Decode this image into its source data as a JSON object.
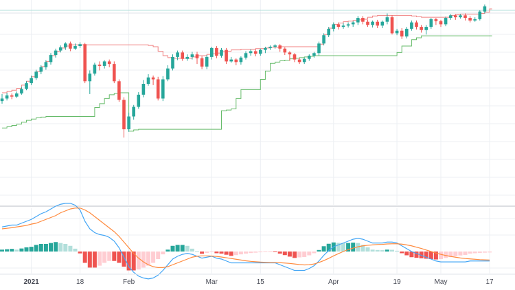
{
  "colors": {
    "up": "#26a69a",
    "down": "#ef5350",
    "upper_band": "#f08080",
    "lower_band": "#66bb6a",
    "macd": "#42a5f5",
    "signal": "#ff8a3d",
    "hist_up_strong": "#26a69a",
    "hist_up_weak": "#b2dfdb",
    "hist_down_strong": "#ef5350",
    "hist_down_weak": "#ffcdd2",
    "pane_divider": "#b8bcc4"
  },
  "chart_data": [
    {
      "type": "candlestick",
      "grid": true,
      "legend": "none",
      "ylim": [
        -30,
        290
      ],
      "x_ticks": [
        {
          "index": 6,
          "label": "2021",
          "bold": true
        },
        {
          "index": 16,
          "label": "18",
          "bold": false
        },
        {
          "index": 26,
          "label": "Feb",
          "bold": false
        },
        {
          "index": 43,
          "label": "Mar",
          "bold": false
        },
        {
          "index": 53,
          "label": "15",
          "bold": false
        },
        {
          "index": 68,
          "label": "Apr",
          "bold": false
        },
        {
          "index": 81,
          "label": "19",
          "bold": false
        },
        {
          "index": 90,
          "label": "May",
          "bold": false
        },
        {
          "index": 100,
          "label": "17",
          "bold": false
        }
      ],
      "candles": [
        [
          132,
          136,
          143,
          128
        ],
        [
          136,
          141,
          145,
          133
        ],
        [
          141,
          139,
          144,
          135
        ],
        [
          139,
          144,
          147,
          137
        ],
        [
          144,
          151,
          154,
          142
        ],
        [
          151,
          160,
          163,
          149
        ],
        [
          160,
          168,
          172,
          157
        ],
        [
          168,
          178,
          181,
          165
        ],
        [
          178,
          185,
          188,
          174
        ],
        [
          185,
          193,
          196,
          181
        ],
        [
          193,
          204,
          207,
          189
        ],
        [
          204,
          211,
          214,
          200
        ],
        [
          211,
          216,
          219,
          208
        ],
        [
          216,
          222,
          224,
          212
        ],
        [
          222,
          214,
          225,
          210
        ],
        [
          214,
          218,
          222,
          212
        ],
        [
          218,
          221,
          224,
          215
        ],
        [
          221,
          163,
          223,
          160
        ],
        [
          163,
          175,
          180,
          143
        ],
        [
          175,
          189,
          192,
          172
        ],
        [
          189,
          187,
          194,
          180
        ],
        [
          187,
          194,
          196,
          183
        ],
        [
          194,
          190,
          197,
          185
        ],
        [
          190,
          163,
          194,
          160
        ],
        [
          163,
          134,
          166,
          131
        ],
        [
          134,
          88,
          138,
          75
        ],
        [
          88,
          108,
          114,
          84
        ],
        [
          108,
          123,
          126,
          103
        ],
        [
          123,
          142,
          146,
          120
        ],
        [
          142,
          159,
          165,
          138
        ],
        [
          159,
          169,
          174,
          156
        ],
        [
          169,
          166,
          172,
          157
        ],
        [
          166,
          136,
          170,
          133
        ],
        [
          136,
          166,
          171,
          132
        ],
        [
          166,
          183,
          188,
          163
        ],
        [
          183,
          201,
          205,
          180
        ],
        [
          201,
          208,
          211,
          196
        ],
        [
          208,
          198,
          211,
          195
        ],
        [
          198,
          201,
          205,
          195
        ],
        [
          201,
          205,
          209,
          197
        ],
        [
          205,
          199,
          209,
          190
        ],
        [
          199,
          186,
          202,
          182
        ],
        [
          186,
          201,
          204,
          182
        ],
        [
          201,
          215,
          217,
          197
        ],
        [
          215,
          203,
          218,
          199
        ],
        [
          203,
          212,
          215,
          200
        ],
        [
          212,
          194,
          215,
          190
        ],
        [
          194,
          197,
          201,
          192
        ],
        [
          197,
          193,
          199,
          188
        ],
        [
          193,
          200,
          202,
          189
        ],
        [
          200,
          207,
          210,
          197
        ],
        [
          207,
          210,
          213,
          203
        ],
        [
          210,
          206,
          213,
          202
        ],
        [
          206,
          212,
          214,
          203
        ],
        [
          212,
          215,
          217,
          207
        ],
        [
          215,
          217,
          219,
          212
        ],
        [
          217,
          219,
          221,
          214
        ],
        [
          219,
          214,
          221,
          209
        ],
        [
          214,
          208,
          216,
          204
        ],
        [
          208,
          205,
          210,
          195
        ],
        [
          205,
          197,
          207,
          193
        ],
        [
          197,
          193,
          200,
          190
        ],
        [
          193,
          198,
          200,
          190
        ],
        [
          198,
          203,
          205,
          195
        ],
        [
          203,
          207,
          209,
          200
        ],
        [
          207,
          222,
          225,
          203
        ],
        [
          222,
          235,
          238,
          219
        ],
        [
          235,
          245,
          248,
          232
        ],
        [
          245,
          252,
          255,
          241
        ],
        [
          252,
          248,
          255,
          244
        ],
        [
          248,
          250,
          254,
          245
        ],
        [
          250,
          252,
          255,
          247
        ],
        [
          252,
          255,
          257,
          248
        ],
        [
          255,
          262,
          265,
          251
        ],
        [
          262,
          256,
          265,
          252
        ],
        [
          256,
          251,
          259,
          248
        ],
        [
          251,
          256,
          258,
          247
        ],
        [
          256,
          250,
          259,
          246
        ],
        [
          250,
          256,
          258,
          246
        ],
        [
          256,
          263,
          269,
          252
        ],
        [
          263,
          238,
          266,
          236
        ],
        [
          238,
          242,
          245,
          235
        ],
        [
          242,
          233,
          246,
          229
        ],
        [
          233,
          245,
          248,
          230
        ],
        [
          245,
          255,
          258,
          242
        ],
        [
          255,
          248,
          258,
          244
        ],
        [
          248,
          243,
          251,
          239
        ],
        [
          243,
          248,
          251,
          236
        ],
        [
          248,
          260,
          262,
          245
        ],
        [
          260,
          257,
          262,
          251
        ],
        [
          257,
          252,
          259,
          248
        ],
        [
          252,
          262,
          264,
          249
        ],
        [
          262,
          266,
          268,
          259
        ],
        [
          266,
          263,
          268,
          259
        ],
        [
          263,
          266,
          268,
          261
        ],
        [
          266,
          262,
          269,
          258
        ],
        [
          262,
          258,
          265,
          255
        ],
        [
          258,
          260,
          263,
          256
        ],
        [
          260,
          272,
          274,
          258
        ],
        [
          272,
          280,
          283,
          269
        ]
      ],
      "upper_band": [
        145,
        147,
        149,
        152,
        157,
        163,
        170,
        178,
        186,
        194,
        203,
        210,
        215,
        218,
        220,
        220,
        220,
        220,
        220,
        220,
        220,
        220,
        220,
        220,
        220,
        220,
        220,
        220,
        220,
        220,
        219,
        217,
        210,
        203,
        200,
        199,
        199,
        199,
        199,
        201,
        203,
        203,
        205,
        206,
        207,
        209,
        210,
        212,
        212,
        213,
        213,
        213,
        214,
        214,
        215,
        216,
        216,
        217,
        217,
        217,
        217,
        217,
        217,
        217,
        217,
        221,
        236,
        246,
        252,
        254,
        256,
        257,
        258,
        259,
        260,
        263,
        265,
        266,
        266,
        266,
        266,
        266,
        266,
        266,
        265,
        264,
        263,
        263,
        263,
        263,
        263,
        263,
        266,
        267,
        268,
        268,
        268,
        268,
        269,
        271,
        276
      ],
      "lower_band": [
        90,
        92,
        94,
        96,
        99,
        102,
        104,
        106,
        107,
        108,
        108,
        108,
        108,
        108,
        108,
        108,
        108,
        108,
        108,
        122,
        128,
        136,
        142,
        144,
        145,
        145,
        85,
        87,
        88,
        88,
        88,
        88,
        88,
        88,
        88,
        88,
        88,
        88,
        88,
        88,
        88,
        88,
        88,
        88,
        88,
        117,
        118,
        120,
        136,
        150,
        150,
        150,
        150,
        166,
        179,
        191,
        193,
        195,
        196,
        198,
        199,
        200,
        201,
        202,
        203,
        203,
        203,
        203,
        203,
        203,
        203,
        203,
        203,
        203,
        203,
        203,
        203,
        203,
        203,
        203,
        203,
        208,
        218,
        218,
        228,
        231,
        234,
        234,
        234,
        234,
        234,
        234,
        234,
        234,
        234,
        234,
        234,
        234,
        234,
        234,
        234
      ]
    },
    {
      "type": "line",
      "grid": true,
      "legend": "none",
      "ylim": [
        -26,
        20
      ],
      "macd": [
        13,
        13.5,
        14,
        14,
        15,
        16,
        17,
        18.5,
        20,
        21,
        22.5,
        24,
        25,
        25.5,
        25.5,
        24.5,
        22,
        16,
        12,
        10,
        9,
        8.5,
        7.5,
        5.5,
        2,
        -3,
        -8,
        -11,
        -13,
        -14,
        -14.5,
        -14,
        -12.5,
        -10,
        -7,
        -4,
        -2.5,
        -1.5,
        -1,
        -1.5,
        -2.5,
        -3.5,
        -3,
        -2.5,
        -3.5,
        -4,
        -5,
        -6,
        -6,
        -6,
        -6,
        -6,
        -6,
        -6,
        -6,
        -6,
        -6,
        -7,
        -8,
        -9,
        -10,
        -10,
        -10,
        -9,
        -7.5,
        -5,
        -2,
        0.5,
        2.5,
        3.5,
        4.5,
        5.5,
        6.5,
        7,
        6.5,
        5.5,
        4.5,
        4.5,
        4.5,
        5,
        5,
        4.5,
        3,
        1.5,
        0,
        -1,
        -2,
        -3,
        -4,
        -5,
        -5.5,
        -5.5,
        -5.5,
        -5.5,
        -5.5,
        -5.5,
        -5,
        -5,
        -5,
        -5,
        -5
      ],
      "signal": [
        12,
        12.3,
        12.6,
        13,
        13.4,
        13.8,
        14.5,
        15,
        16,
        17,
        18,
        19,
        20.5,
        21.5,
        22.5,
        23,
        23,
        22,
        20.5,
        18.5,
        16.5,
        14.5,
        12.5,
        10.5,
        8,
        5,
        2,
        -1,
        -3.5,
        -5.5,
        -7,
        -8,
        -8.5,
        -8.5,
        -8,
        -7,
        -6,
        -5,
        -4,
        -3,
        -2.5,
        -2.3,
        -2.3,
        -2.4,
        -2.6,
        -2.9,
        -3.3,
        -3.7,
        -4.1,
        -4.5,
        -4.9,
        -5.2,
        -5.4,
        -5.6,
        -5.7,
        -5.8,
        -5.8,
        -5.9,
        -6.1,
        -6.3,
        -6.6,
        -6.9,
        -7.1,
        -7,
        -6.6,
        -5.8,
        -4.8,
        -3.6,
        -2.3,
        -1.1,
        0,
        1,
        1.8,
        2.5,
        3,
        3.3,
        3.5,
        3.7,
        3.8,
        4,
        4.1,
        4.1,
        3.9,
        3.5,
        3,
        2.3,
        1.6,
        0.8,
        0,
        -0.8,
        -1.5,
        -2.1,
        -2.6,
        -3,
        -3.4,
        -3.7,
        -3.9,
        -4.1,
        -4.3,
        -4.4,
        -4.5
      ]
    }
  ]
}
